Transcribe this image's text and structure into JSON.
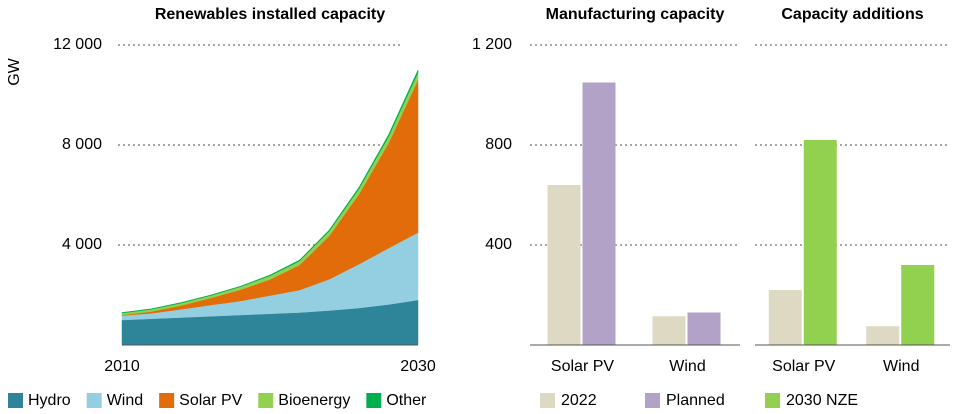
{
  "chart_data": [
    {
      "type": "stacked-area",
      "title": "Renewables installed capacity",
      "y_label": "GW",
      "x": [
        2010,
        2012,
        2014,
        2016,
        2018,
        2020,
        2022,
        2024,
        2026,
        2028,
        2030
      ],
      "xlim": [
        2010,
        2030
      ],
      "xticks": [
        2010,
        2030
      ],
      "ylim": [
        0,
        12000
      ],
      "yticks": [
        {
          "value": 4000,
          "label": "4 000"
        },
        {
          "value": 8000,
          "label": "8 000"
        },
        {
          "value": 12000,
          "label": "12 000"
        }
      ],
      "grid": true,
      "series": [
        {
          "name": "Hydro",
          "color": "#2e8499",
          "values": [
            1000,
            1050,
            1100,
            1150,
            1200,
            1250,
            1300,
            1380,
            1480,
            1620,
            1800
          ]
        },
        {
          "name": "Wind",
          "color": "#93cfe0",
          "values": [
            180,
            220,
            330,
            450,
            560,
            730,
            900,
            1250,
            1750,
            2250,
            2700
          ]
        },
        {
          "name": "Solar PV",
          "color": "#e36c0a",
          "values": [
            20,
            70,
            150,
            280,
            450,
            640,
            1000,
            1730,
            2790,
            4190,
            6100
          ]
        },
        {
          "name": "Bioenergy",
          "color": "#92d050",
          "values": [
            80,
            90,
            100,
            100,
            120,
            150,
            160,
            190,
            220,
            260,
            300
          ]
        },
        {
          "name": "Other",
          "color": "#00b050",
          "values": [
            20,
            20,
            20,
            20,
            20,
            30,
            40,
            50,
            60,
            80,
            100
          ]
        }
      ]
    },
    {
      "type": "bar",
      "title": "Manufacturing capacity",
      "categories": [
        "Solar PV",
        "Wind"
      ],
      "ylim": [
        0,
        1200
      ],
      "yticks": [
        400,
        800,
        {
          "value": 1200,
          "label": "1 200"
        }
      ],
      "grid": true,
      "series": [
        {
          "name": "2022",
          "color": "#ddd9c3",
          "values": [
            640,
            115
          ]
        },
        {
          "name": "Planned",
          "color": "#b3a2c7",
          "values": [
            1050,
            130
          ]
        }
      ]
    },
    {
      "type": "bar",
      "title": "Capacity additions",
      "categories": [
        "Solar PV",
        "Wind"
      ],
      "ylim": [
        0,
        1200
      ],
      "yticks": [
        400,
        800,
        1200
      ],
      "grid": true,
      "series": [
        {
          "name": "2022",
          "color": "#ddd9c3",
          "values": [
            220,
            75
          ]
        },
        {
          "name": "2030 NZE",
          "color": "#92d050",
          "values": [
            820,
            320
          ]
        }
      ]
    }
  ]
}
